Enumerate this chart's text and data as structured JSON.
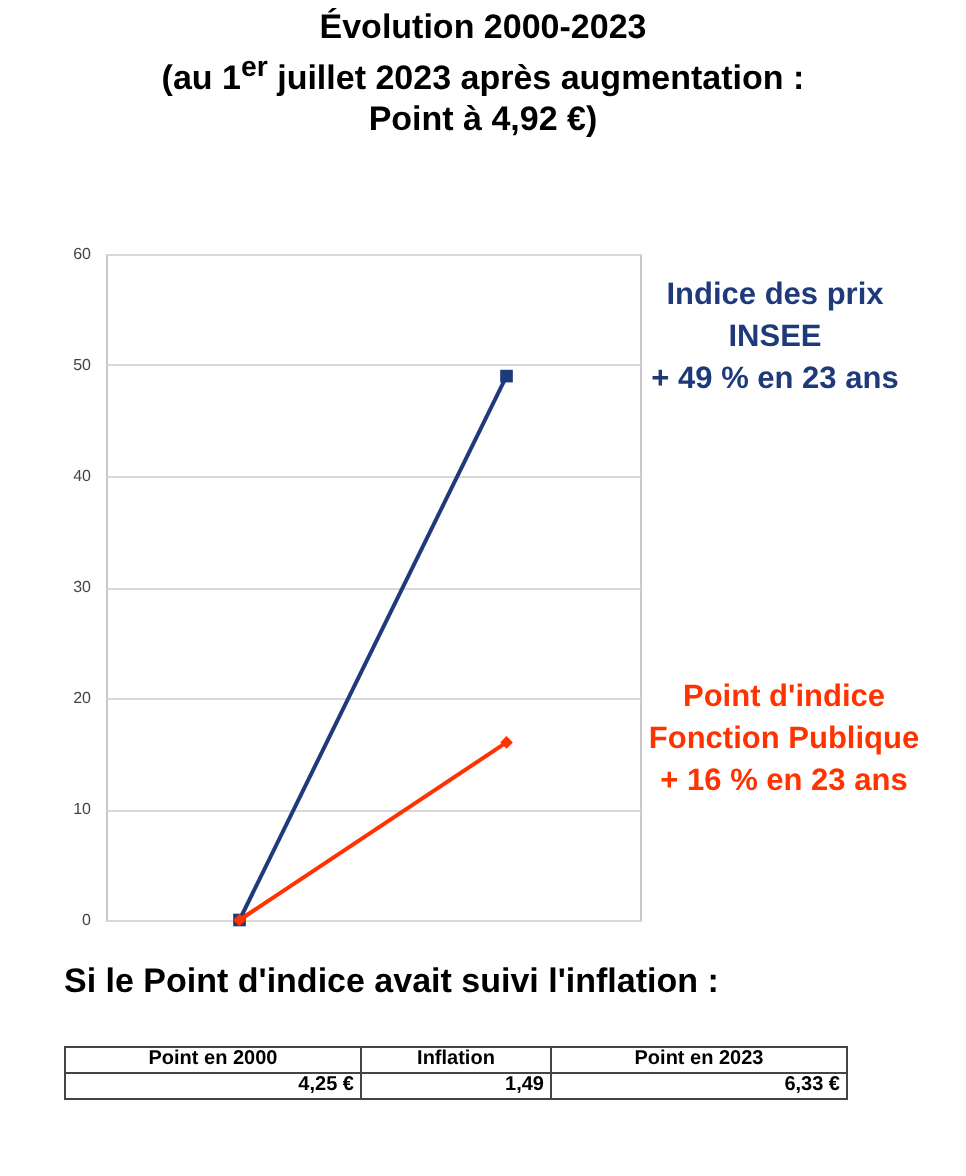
{
  "chart_data": {
    "type": "line",
    "title": "Évolution 2000-2023\n(au 1$^{er}$ juillet 2023 après augmentation :\nPoint à 4,92 €)",
    "categories": [
      null,
      null
    ],
    "series": [
      {
        "name": "Indice des prix INSEE",
        "color": "#1f3a7a",
        "marker": "square",
        "values": [
          0,
          49
        ]
      },
      {
        "name": "Point d'indice Fonction Publique",
        "color": "#ff3300",
        "marker": "diamond",
        "values": [
          0,
          16
        ]
      }
    ],
    "ylim": [
      0,
      60
    ],
    "yticks": [
      0,
      10,
      20,
      30,
      40,
      50,
      60
    ],
    "grid": "y",
    "tick_labels": "y",
    "annotations": [
      "+ 49 % en 23 ans",
      "+ 16 % en 23 ans",
      "Si le Point d'indice avait suivi l'inflation :",
      "Point en 2000",
      "Inflation",
      "Point en 2023",
      "4,25 €",
      "1,49",
      "6,33 €"
    ]
  }
}
